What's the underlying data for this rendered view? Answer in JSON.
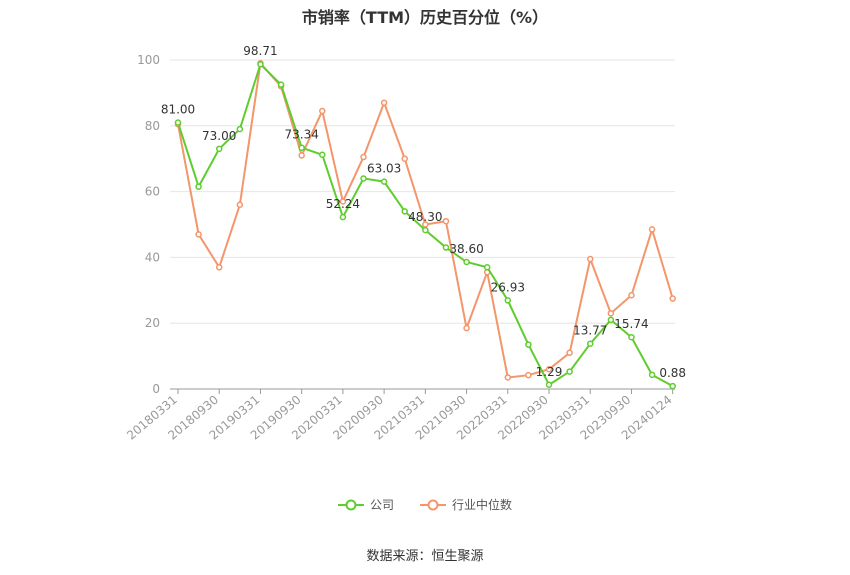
{
  "chart_data": {
    "type": "line",
    "title": "市销率（TTM）历史百分位（%）",
    "x": [
      "20180331",
      "20180630",
      "20180930",
      "20181231",
      "20190331",
      "20190630",
      "20190930",
      "20191231",
      "20200331",
      "20200630",
      "20200930",
      "20201231",
      "20210331",
      "20210630",
      "20210930",
      "20211231",
      "20220331",
      "20220630",
      "20220930",
      "20221231",
      "20230331",
      "20230630",
      "20230930",
      "20231231",
      "20240124"
    ],
    "x_tick_labels": [
      "20180331",
      "20180930",
      "20190331",
      "20190930",
      "20200331",
      "20200930",
      "20210331",
      "20210930",
      "20220331",
      "20220930",
      "20230331",
      "20230930",
      "20240124"
    ],
    "ylim": [
      0,
      100
    ],
    "y_ticks": [
      0,
      20,
      40,
      60,
      80,
      100
    ],
    "grid": true,
    "legend_position": "bottom",
    "series": [
      {
        "name": "公司",
        "color": "#5fcc2f",
        "values": [
          81.0,
          61.5,
          73.0,
          79.0,
          98.71,
          92.5,
          73.34,
          71.2,
          52.24,
          64.0,
          63.03,
          54.0,
          48.3,
          43.0,
          38.6,
          37.0,
          26.93,
          13.5,
          1.29,
          5.3,
          13.77,
          21.0,
          15.74,
          4.3,
          0.88
        ],
        "labels": [
          "81.00",
          "",
          "73.00",
          "",
          "98.71",
          "",
          "73.34",
          "",
          "52.24",
          "",
          "63.03",
          "",
          "48.30",
          "",
          "38.60",
          "",
          "26.93",
          "",
          "1.29",
          "",
          "13.77",
          "",
          "15.74",
          "",
          "0.88"
        ]
      },
      {
        "name": "行业中位数",
        "color": "#f4956a",
        "values": [
          80.5,
          47.0,
          37.0,
          56.0,
          99.0,
          92.0,
          71.0,
          84.5,
          57.0,
          70.5,
          87.0,
          70.0,
          50.0,
          51.0,
          18.5,
          35.5,
          3.5,
          4.2,
          6.0,
          11.0,
          39.5,
          23.0,
          28.5,
          48.5,
          27.5
        ]
      }
    ]
  },
  "source": "数据来源：恒生聚源"
}
